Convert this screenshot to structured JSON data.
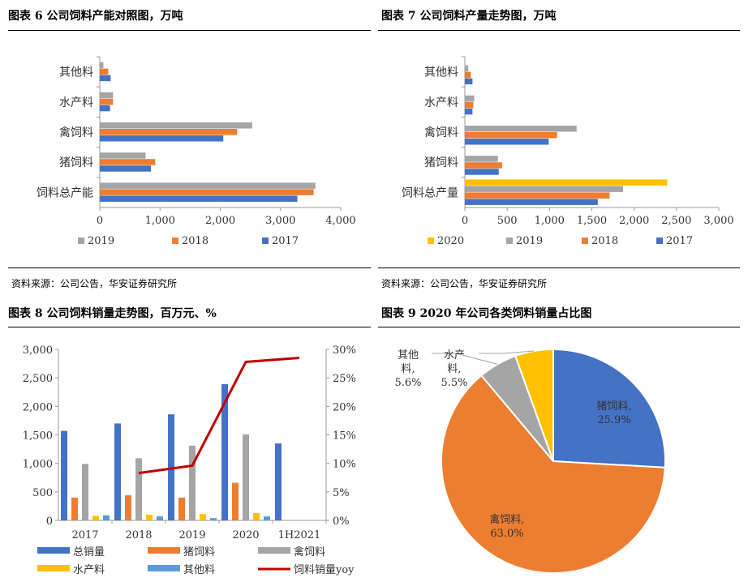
{
  "fig6": {
    "title": "图表 6 公司饲料产能对照图，万吨",
    "source": "资料来源：公司公告，华安证券研究所"
  },
  "fig7": {
    "title": "图表 7 公司饲料产量走势图，万吨",
    "source": "资料来源：公司公告，华安证券研究所"
  },
  "fig8": {
    "title": "图表 8 公司饲料销量走势图，百万元、%"
  },
  "fig9": {
    "title": "图表 9 2020 年公司各类饲料销量占比图"
  },
  "colors": {
    "y2017": "#4472C4",
    "y2018": "#ED7D31",
    "y2019": "#A5A5A5",
    "y2020": "#FFC000",
    "other": "#5B9BD5",
    "yoy": "#C00000"
  },
  "chart_data": [
    {
      "id": "fig6",
      "type": "bar",
      "orientation": "horizontal",
      "categories": [
        "其他料",
        "水产料",
        "禽饲料",
        "猪饲料",
        "饲料总产能"
      ],
      "series": [
        {
          "name": "2019",
          "color": "#A5A5A5",
          "values": [
            60,
            220,
            2530,
            760,
            3580
          ]
        },
        {
          "name": "2018",
          "color": "#ED7D31",
          "values": [
            140,
            220,
            2280,
            920,
            3550
          ]
        },
        {
          "name": "2017",
          "color": "#4472C4",
          "values": [
            180,
            170,
            2050,
            850,
            3280
          ]
        }
      ],
      "xlim": [
        0,
        4000
      ],
      "xticks": [
        "0",
        "1,000",
        "2,000",
        "3,000",
        "4,000"
      ],
      "legend": [
        "2019",
        "2018",
        "2017"
      ],
      "legend_position": "bottom"
    },
    {
      "id": "fig7",
      "type": "bar",
      "orientation": "horizontal",
      "categories": [
        "其他料",
        "水产料",
        "禽饲料",
        "猪饲料",
        "饲料总产量"
      ],
      "series": [
        {
          "name": "2020",
          "color": "#FFC000",
          "values": [
            null,
            null,
            null,
            null,
            2390
          ]
        },
        {
          "name": "2019",
          "color": "#A5A5A5",
          "values": [
            40,
            110,
            1320,
            390,
            1870
          ]
        },
        {
          "name": "2018",
          "color": "#ED7D31",
          "values": [
            70,
            100,
            1090,
            440,
            1710
          ]
        },
        {
          "name": "2017",
          "color": "#4472C4",
          "values": [
            90,
            90,
            990,
            400,
            1570
          ]
        }
      ],
      "xlim": [
        0,
        3000
      ],
      "xticks": [
        "0",
        "500",
        "1,000",
        "1,500",
        "2,000",
        "2,500",
        "3,000"
      ],
      "legend": [
        "2020",
        "2019",
        "2018",
        "2017"
      ],
      "legend_position": "bottom"
    },
    {
      "id": "fig8",
      "type": "bar",
      "categories": [
        "2017",
        "2018",
        "2019",
        "2020",
        "1H2021"
      ],
      "series": [
        {
          "name": "总销量",
          "color": "#4472C4",
          "values": [
            1570,
            1700,
            1860,
            2390,
            1350
          ]
        },
        {
          "name": "猪饲料",
          "color": "#ED7D31",
          "values": [
            400,
            440,
            400,
            660,
            null
          ]
        },
        {
          "name": "禽饲料",
          "color": "#A5A5A5",
          "values": [
            990,
            1090,
            1310,
            1510,
            null
          ]
        },
        {
          "name": "水产料",
          "color": "#FFC000",
          "values": [
            80,
            100,
            110,
            130,
            null
          ]
        },
        {
          "name": "其他料",
          "color": "#5B9BD5",
          "values": [
            90,
            70,
            40,
            70,
            null
          ]
        },
        {
          "name": "饲料销量yoy",
          "type": "line",
          "axis": "right",
          "color": "#C00000",
          "values": [
            null,
            8.3,
            9.6,
            27.8,
            28.5
          ]
        }
      ],
      "ylim": [
        0,
        3000
      ],
      "yticks": [
        "0",
        "500",
        "1,000",
        "1,500",
        "2,000",
        "2,500",
        "3,000"
      ],
      "y2lim": [
        0,
        30
      ],
      "y2ticks": [
        "0%",
        "5%",
        "10%",
        "15%",
        "20%",
        "25%",
        "30%"
      ],
      "legend": [
        "总销量",
        "猪饲料",
        "禽饲料",
        "水产料",
        "其他料",
        "饲料销量yoy"
      ],
      "legend_position": "bottom"
    },
    {
      "id": "fig9",
      "type": "pie",
      "slices": [
        {
          "name": "猪饲料",
          "value": 25.9,
          "color": "#4472C4",
          "label": [
            "猪饲料,",
            "25.9%"
          ]
        },
        {
          "name": "禽饲料",
          "value": 63.0,
          "color": "#ED7D31",
          "label": [
            "禽饲料,",
            "63.0%"
          ]
        },
        {
          "name": "其他料",
          "value": 5.6,
          "color": "#A5A5A5",
          "label": [
            "其他",
            "料,",
            "5.6%"
          ]
        },
        {
          "name": "水产料",
          "value": 5.5,
          "color": "#FFC000",
          "label": [
            "水产",
            "料,",
            "5.5%"
          ]
        }
      ]
    }
  ]
}
